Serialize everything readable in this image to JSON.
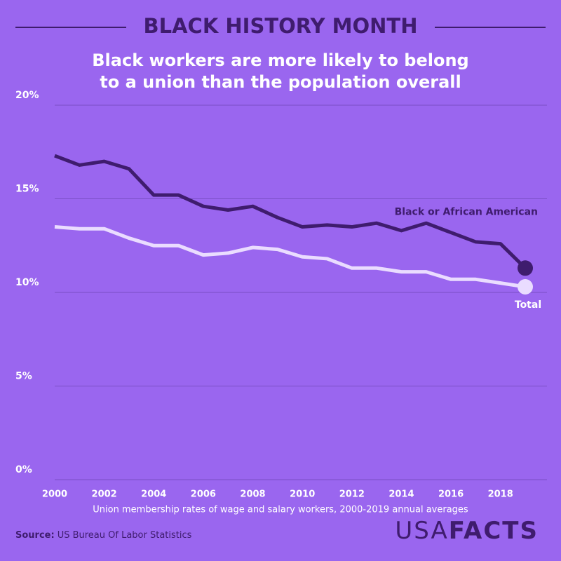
{
  "header": "BLACK HISTORY MONTH",
  "chart_data": {
    "type": "line",
    "title": "Black workers are more likely to belong to a union than the population overall",
    "x": [
      2000,
      2001,
      2002,
      2003,
      2004,
      2005,
      2006,
      2007,
      2008,
      2009,
      2010,
      2011,
      2012,
      2013,
      2014,
      2015,
      2016,
      2017,
      2018,
      2019
    ],
    "series": [
      {
        "name": "Black or African American",
        "color": "#3f1c6e",
        "values": [
          17.3,
          16.8,
          17.0,
          16.6,
          15.2,
          15.2,
          14.6,
          14.4,
          14.6,
          14.0,
          13.5,
          13.6,
          13.5,
          13.7,
          13.3,
          13.7,
          13.2,
          12.7,
          12.6,
          11.3
        ]
      },
      {
        "name": "Total",
        "color": "#eadcff",
        "values": [
          13.5,
          13.4,
          13.4,
          12.9,
          12.5,
          12.5,
          12.0,
          12.1,
          12.4,
          12.3,
          11.9,
          11.8,
          11.3,
          11.3,
          11.1,
          11.1,
          10.7,
          10.7,
          10.5,
          10.3
        ]
      }
    ],
    "xlim": [
      2000,
      2019
    ],
    "xticks": [
      2000,
      2002,
      2004,
      2006,
      2008,
      2010,
      2012,
      2014,
      2016,
      2018
    ],
    "ylim": [
      0,
      20
    ],
    "yticks": [
      {
        "value": 0,
        "label": "0%"
      },
      {
        "value": 5,
        "label": "5%"
      },
      {
        "value": 10,
        "label": "10%"
      },
      {
        "value": 15,
        "label": "15%"
      },
      {
        "value": 20,
        "label": "20%"
      }
    ],
    "grid": true,
    "xlabel": "Union membership rates of  wage and salary workers, 2000-2019 annual averages"
  },
  "source": {
    "label": "Source:",
    "text": "US Bureau Of Labor Statistics"
  },
  "logo": {
    "left": "USA",
    "right": "FACTS"
  }
}
